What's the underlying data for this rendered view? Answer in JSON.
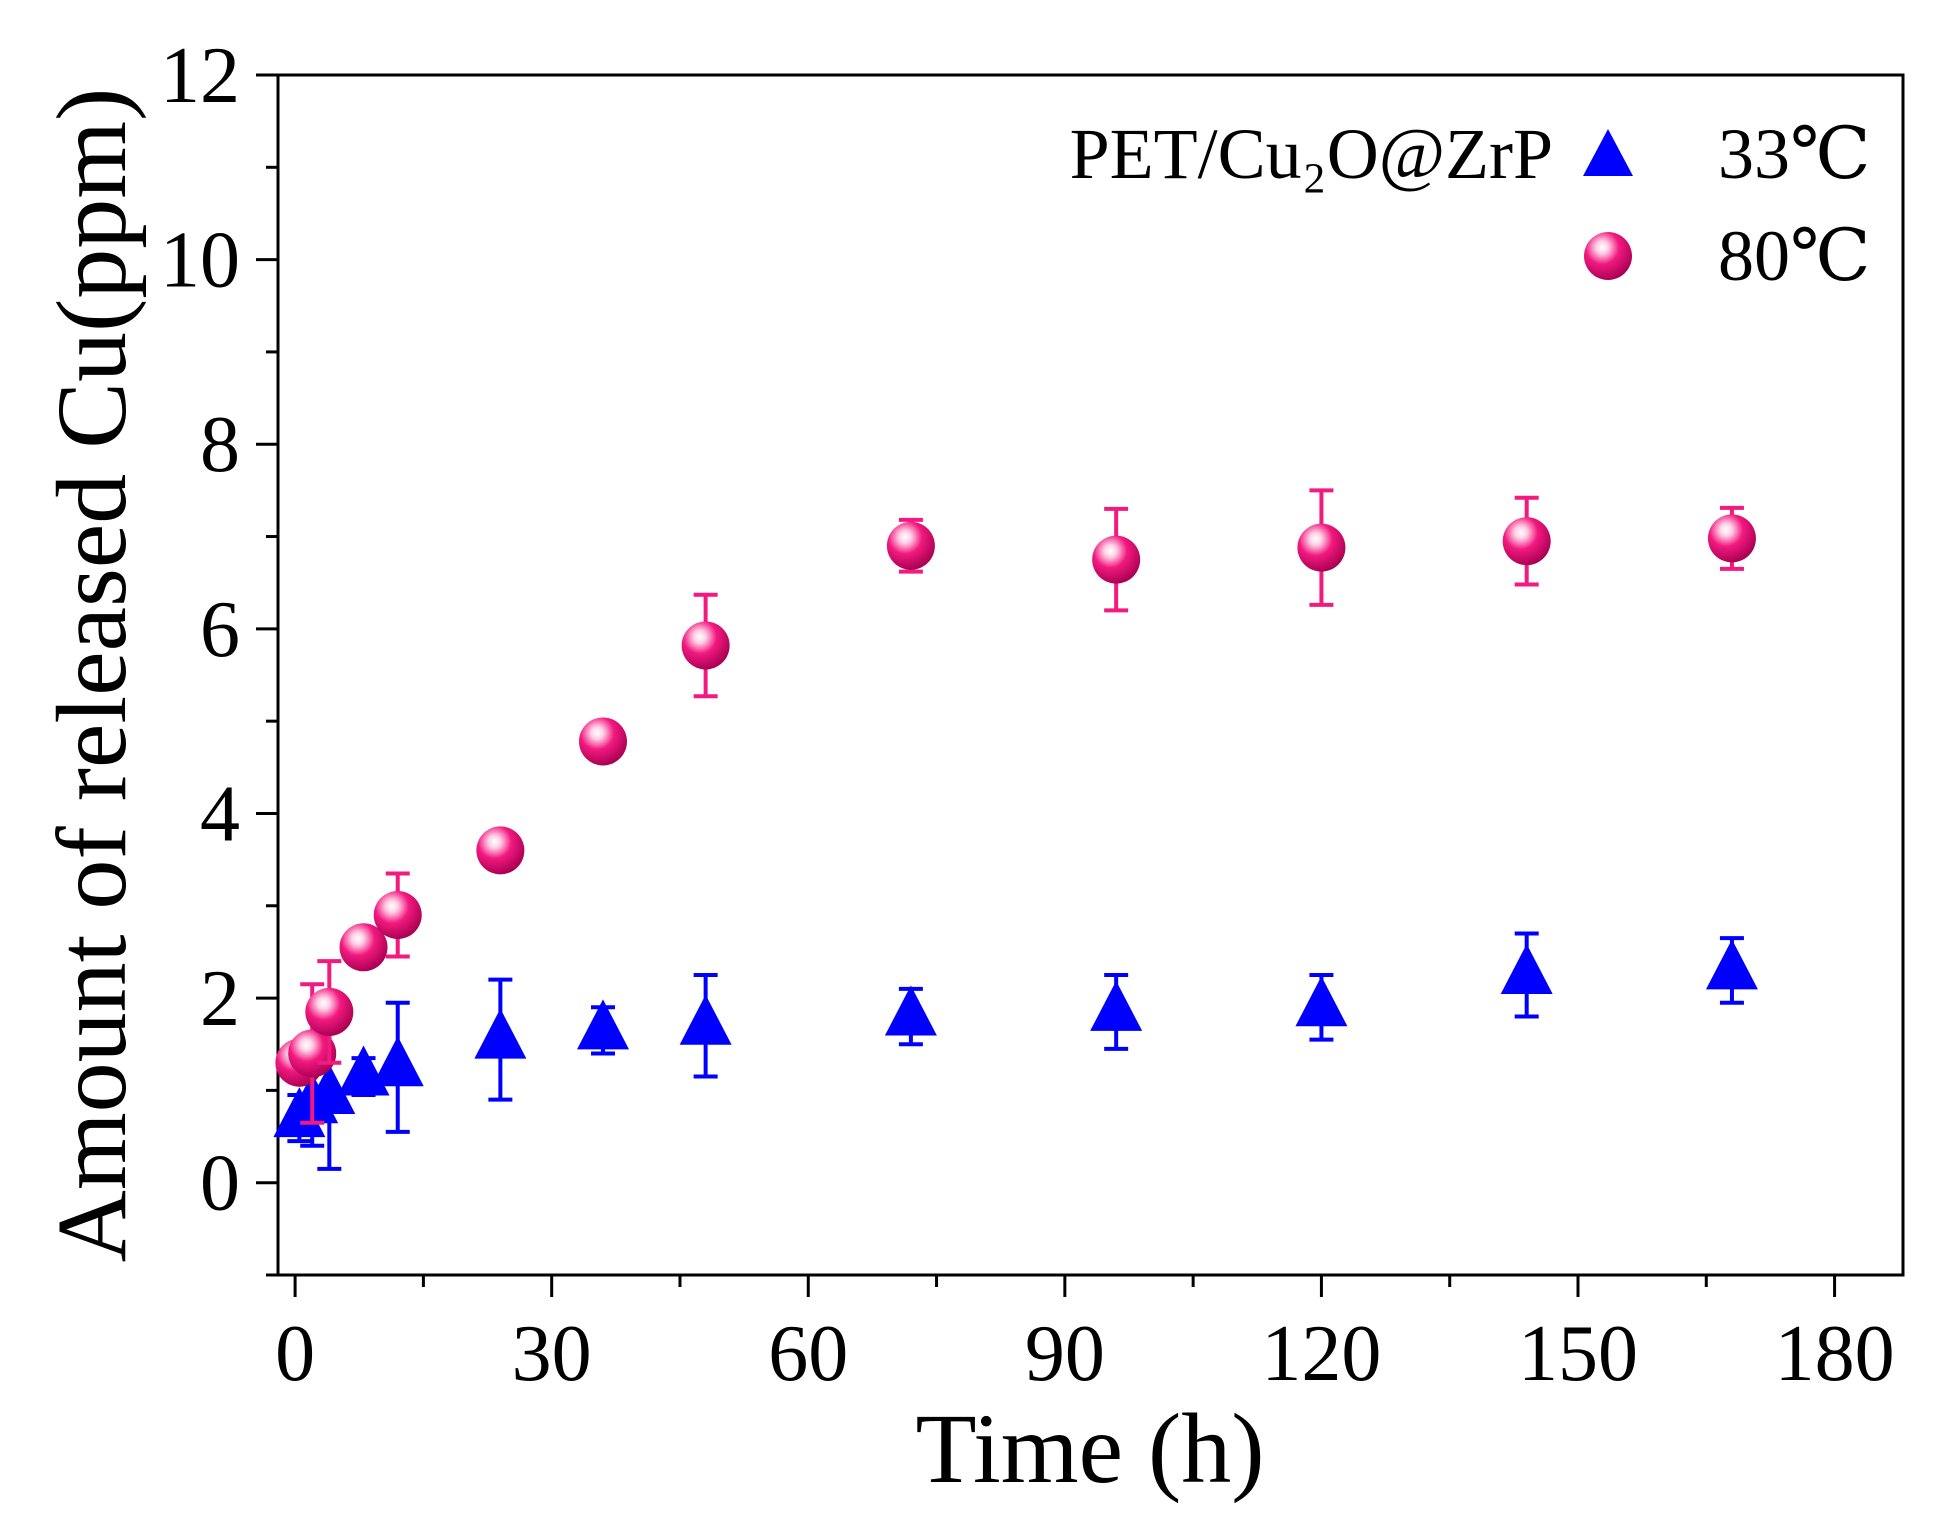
{
  "chart_data": {
    "type": "scatter",
    "xlabel": "Time (h)",
    "ylabel": "Amount of released Cu(ppm)",
    "xlim": [
      -2,
      188
    ],
    "ylim": [
      -1,
      12
    ],
    "xticks": [
      0,
      30,
      60,
      90,
      120,
      150,
      180
    ],
    "yticks": [
      0,
      2,
      4,
      6,
      8,
      10,
      12
    ],
    "legend_title": "PET/Cu₂O@ZrP",
    "legend_position": "top-right",
    "series": [
      {
        "name": "33℃",
        "marker": "triangle",
        "color": "#0000ff",
        "points": [
          {
            "x": 0.5,
            "y": 0.7,
            "err": 0.25
          },
          {
            "x": 2,
            "y": 0.85,
            "err": 0.45
          },
          {
            "x": 4,
            "y": 0.95,
            "err": 0.8
          },
          {
            "x": 8,
            "y": 1.15,
            "err": 0.2
          },
          {
            "x": 12,
            "y": 1.25,
            "err": 0.7
          },
          {
            "x": 24,
            "y": 1.55,
            "err": 0.65
          },
          {
            "x": 36,
            "y": 1.65,
            "err": 0.25
          },
          {
            "x": 48,
            "y": 1.7,
            "err": 0.55
          },
          {
            "x": 72,
            "y": 1.8,
            "err": 0.3
          },
          {
            "x": 96,
            "y": 1.85,
            "err": 0.4
          },
          {
            "x": 120,
            "y": 1.9,
            "err": 0.35
          },
          {
            "x": 144,
            "y": 2.25,
            "err": 0.45
          },
          {
            "x": 168,
            "y": 2.3,
            "err": 0.35
          }
        ]
      },
      {
        "name": "80℃",
        "marker": "sphere",
        "color": "#f2197f",
        "points": [
          {
            "x": 0.5,
            "y": 1.3,
            "err": 0.1
          },
          {
            "x": 2,
            "y": 1.4,
            "err": 0.75
          },
          {
            "x": 4,
            "y": 1.85,
            "err": 0.55
          },
          {
            "x": 8,
            "y": 2.55,
            "err": 0.1
          },
          {
            "x": 12,
            "y": 2.9,
            "err": 0.45
          },
          {
            "x": 24,
            "y": 3.6,
            "err": 0.1
          },
          {
            "x": 36,
            "y": 4.78,
            "err": 0.1
          },
          {
            "x": 48,
            "y": 5.82,
            "err": 0.55
          },
          {
            "x": 72,
            "y": 6.9,
            "err": 0.28
          },
          {
            "x": 96,
            "y": 6.75,
            "err": 0.55
          },
          {
            "x": 120,
            "y": 6.88,
            "err": 0.62
          },
          {
            "x": 144,
            "y": 6.95,
            "err": 0.47
          },
          {
            "x": 168,
            "y": 6.98,
            "err": 0.33
          }
        ]
      }
    ]
  }
}
